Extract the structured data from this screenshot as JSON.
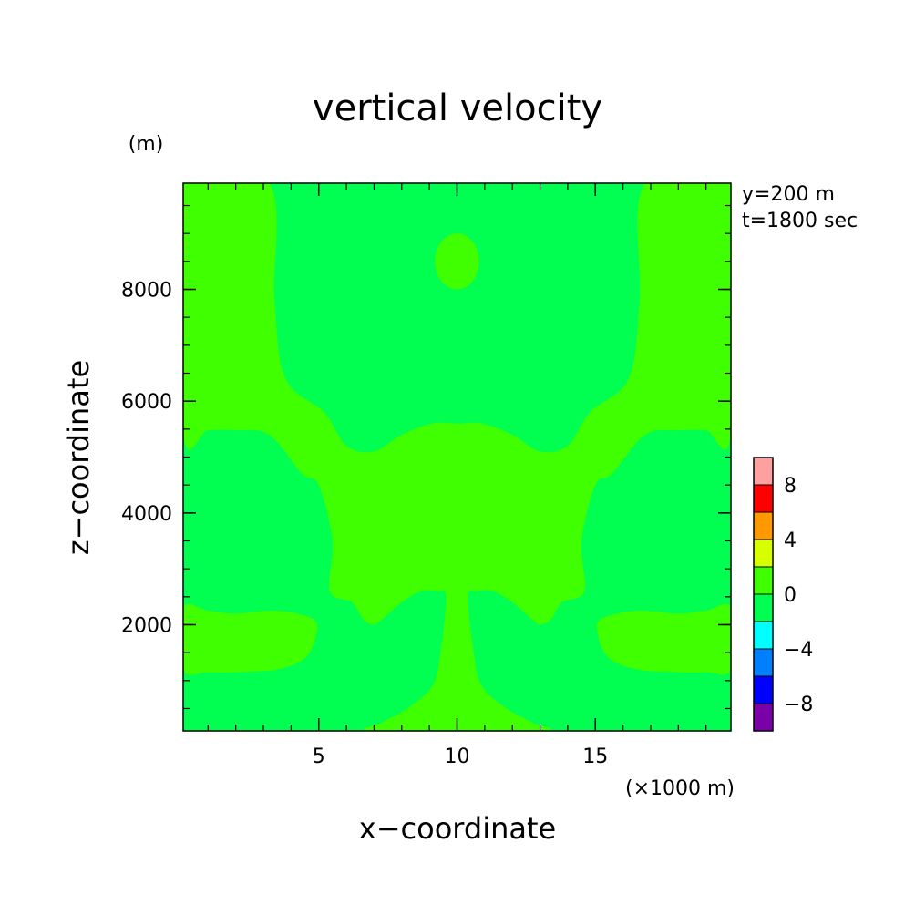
{
  "chart_data": {
    "type": "heatmap",
    "title": "vertical velocity",
    "xlabel": "x−coordinate",
    "ylabel": "z−coordinate",
    "x_unit": "(×1000 m)",
    "y_unit": "(m)",
    "annotations": [
      "y=200 m",
      "t=1800 sec"
    ],
    "xlim": [
      0.1,
      19.9
    ],
    "ylim": [
      100,
      9900
    ],
    "x_ticks": [
      5,
      10,
      15
    ],
    "y_ticks": [
      2000,
      4000,
      6000,
      8000
    ],
    "x_tick_labels": [
      "5",
      "10",
      "15"
    ],
    "y_tick_labels": [
      "2000",
      "4000",
      "6000",
      "8000"
    ],
    "x_minor_ticks": [
      1,
      2,
      3,
      4,
      5,
      6,
      7,
      8,
      9,
      10,
      11,
      12,
      13,
      14,
      15,
      16,
      17,
      18,
      19
    ],
    "y_minor_ticks": [
      500,
      1000,
      1500,
      2000,
      2500,
      3000,
      3500,
      4000,
      4500,
      5000,
      5500,
      6000,
      6500,
      7000,
      7500,
      8000,
      8500,
      9000,
      9500
    ],
    "legend_position": "right",
    "colorbar": {
      "levels": [
        -10,
        -8,
        -6,
        -4,
        -2,
        0,
        2,
        4,
        6,
        8,
        10
      ],
      "tick_values": [
        -8,
        -4,
        0,
        4,
        8
      ],
      "tick_labels": [
        "−8",
        "−4",
        "0",
        "4",
        "8"
      ],
      "colors": [
        "#7a00a8",
        "#0000ff",
        "#0080ff",
        "#00ffff",
        "#00ff50",
        "#40ff00",
        "#d8ff00",
        "#ff9900",
        "#ff0000",
        "#ffa0a0"
      ]
    },
    "background_level_color": "#00ff50",
    "regions": [
      {
        "name": "upper-updraft-band",
        "range": [
          0,
          2
        ],
        "color": "#40ff00",
        "boundary": [
          [
            0.1,
            5.45
          ],
          [
            1,
            5.48
          ],
          [
            2,
            5.48
          ],
          [
            3.2,
            5.4
          ],
          [
            4.4,
            4.7
          ],
          [
            5,
            4.5
          ],
          [
            5.5,
            3.5
          ],
          [
            5.4,
            2.6
          ],
          [
            6.2,
            2.4
          ],
          [
            6.6,
            2.1
          ],
          [
            7,
            2.0
          ],
          [
            7.3,
            2.1
          ],
          [
            8,
            2.4
          ],
          [
            8.7,
            2.6
          ],
          [
            9.3,
            2.6
          ],
          [
            9.6,
            2.5
          ],
          [
            9.4,
            1.5
          ],
          [
            9.1,
            0.9
          ],
          [
            8.2,
            0.5
          ],
          [
            7.3,
            0.25
          ],
          [
            7,
            0.1
          ],
          [
            13,
            0.1
          ],
          [
            12.7,
            0.25
          ],
          [
            11.8,
            0.5
          ],
          [
            10.9,
            0.9
          ],
          [
            10.6,
            1.5
          ],
          [
            10.4,
            2.5
          ],
          [
            10.7,
            2.6
          ],
          [
            11.3,
            2.6
          ],
          [
            12,
            2.4
          ],
          [
            12.7,
            2.1
          ],
          [
            13,
            2.0
          ],
          [
            13.4,
            2.1
          ],
          [
            13.8,
            2.4
          ],
          [
            14.6,
            2.6
          ],
          [
            14.5,
            3.5
          ],
          [
            15,
            4.5
          ],
          [
            15.6,
            4.7
          ],
          [
            16.8,
            5.4
          ],
          [
            18,
            5.48
          ],
          [
            19,
            5.48
          ],
          [
            19.9,
            5.45
          ],
          [
            19.9,
            9.9
          ],
          [
            16.8,
            9.9
          ],
          [
            16.6,
            7.8
          ],
          [
            16.2,
            6.4
          ],
          [
            14.8,
            5.8
          ],
          [
            14.0,
            5.2
          ],
          [
            13,
            5.1
          ],
          [
            12,
            5.4
          ],
          [
            10.9,
            5.6
          ],
          [
            10,
            5.6
          ],
          [
            9.1,
            5.6
          ],
          [
            8,
            5.4
          ],
          [
            7,
            5.1
          ],
          [
            6,
            5.2
          ],
          [
            5.2,
            5.8
          ],
          [
            3.8,
            6.4
          ],
          [
            3.4,
            7.8
          ],
          [
            3.2,
            9.9
          ],
          [
            0.1,
            9.9
          ]
        ]
      },
      {
        "name": "upper-center-cell",
        "range": [
          0,
          2
        ],
        "color": "#40ff00",
        "center": [
          10,
          8500
        ],
        "radius": [
          0.8,
          500
        ]
      },
      {
        "name": "left-low-band",
        "range": [
          0,
          2
        ],
        "color": "#40ff00",
        "boundary": [
          [
            0.1,
            2.3
          ],
          [
            1,
            2.25
          ],
          [
            2,
            2.2
          ],
          [
            3.5,
            2.25
          ],
          [
            4.8,
            2.1
          ],
          [
            4.9,
            1.8
          ],
          [
            4.5,
            1.4
          ],
          [
            3.5,
            1.2
          ],
          [
            2,
            1.15
          ],
          [
            1,
            1.15
          ],
          [
            0.1,
            1.2
          ]
        ]
      },
      {
        "name": "right-low-band",
        "range": [
          0,
          2
        ],
        "color": "#40ff00",
        "boundary": [
          [
            19.9,
            2.3
          ],
          [
            19,
            2.25
          ],
          [
            18,
            2.2
          ],
          [
            16.5,
            2.25
          ],
          [
            15.2,
            2.1
          ],
          [
            15.1,
            1.8
          ],
          [
            15.5,
            1.4
          ],
          [
            16.5,
            1.2
          ],
          [
            18,
            1.15
          ],
          [
            19,
            1.15
          ],
          [
            19.9,
            1.2
          ]
        ]
      }
    ]
  }
}
